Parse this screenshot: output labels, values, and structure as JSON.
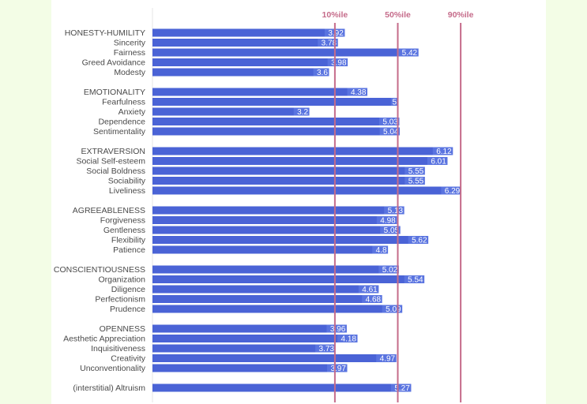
{
  "chart_data": {
    "type": "bar",
    "orientation": "horizontal",
    "title": "",
    "xlabel": "",
    "ylabel": "",
    "xlim": [
      0,
      6.5
    ],
    "grid": false,
    "bar_color": "#4a63d6",
    "label_box_color": "#5a74e0",
    "reference_line_color": "#c56b8a",
    "reference_lines": [
      {
        "label": "10%ile",
        "value": 3.72
      },
      {
        "label": "50%ile",
        "value": 5.0
      },
      {
        "label": "90%ile",
        "value": 6.28
      }
    ],
    "groups": [
      {
        "items": [
          {
            "label": "HONESTY-HUMILITY",
            "value": 3.92
          },
          {
            "label": "Sincerity",
            "value": 3.78
          },
          {
            "label": "Fairness",
            "value": 5.42
          },
          {
            "label": "Greed Avoidance",
            "value": 3.98
          },
          {
            "label": "Modesty",
            "value": 3.6
          }
        ]
      },
      {
        "items": [
          {
            "label": "EMOTIONALITY",
            "value": 4.38
          },
          {
            "label": "Fearfulness",
            "value": 5
          },
          {
            "label": "Anxiety",
            "value": 3.2
          },
          {
            "label": "Dependence",
            "value": 5.03
          },
          {
            "label": "Sentimentality",
            "value": 5.04
          }
        ]
      },
      {
        "items": [
          {
            "label": "EXTRAVERSION",
            "value": 6.12
          },
          {
            "label": "Social Self-esteem",
            "value": 6.01
          },
          {
            "label": "Social Boldness",
            "value": 5.55
          },
          {
            "label": "Sociability",
            "value": 5.55
          },
          {
            "label": "Liveliness",
            "value": 6.29
          }
        ]
      },
      {
        "items": [
          {
            "label": "AGREEABLENESS",
            "value": 5.13
          },
          {
            "label": "Forgiveness",
            "value": 4.98
          },
          {
            "label": "Gentleness",
            "value": 5.05
          },
          {
            "label": "Flexibility",
            "value": 5.62
          },
          {
            "label": "Patience",
            "value": 4.8
          }
        ]
      },
      {
        "items": [
          {
            "label": "CONSCIENTIOUSNESS",
            "value": 5.02
          },
          {
            "label": "Organization",
            "value": 5.54
          },
          {
            "label": "Diligence",
            "value": 4.61
          },
          {
            "label": "Perfectionism",
            "value": 4.68
          },
          {
            "label": "Prudence",
            "value": 5.09
          }
        ]
      },
      {
        "items": [
          {
            "label": "OPENNESS",
            "value": 3.96
          },
          {
            "label": "Aesthetic Appreciation",
            "value": 4.18
          },
          {
            "label": "Inquisitiveness",
            "value": 3.73
          },
          {
            "label": "Creativity",
            "value": 4.97
          },
          {
            "label": "Unconventionality",
            "value": 3.97
          }
        ]
      },
      {
        "items": [
          {
            "label": "(interstitial) Altruism",
            "value": 5.27
          }
        ]
      }
    ]
  }
}
